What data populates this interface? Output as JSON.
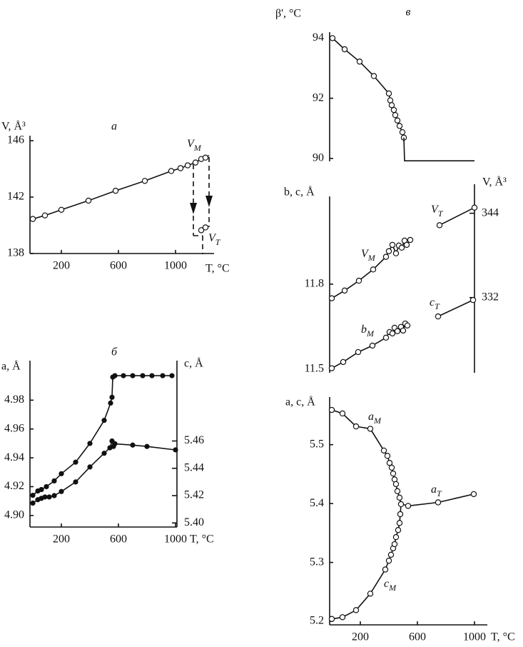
{
  "chart_data": [
    {
      "type": "scatter",
      "title": "а",
      "ylabel": "V, Å³",
      "xlabel": "T, °C",
      "marker": "open",
      "xlim": [
        -20,
        1270
      ],
      "ylim": [
        138,
        146
      ],
      "xticks": [
        200,
        600,
        1000
      ],
      "yticks": [
        138,
        142,
        146
      ],
      "series": [
        {
          "x": [
            0,
            85,
            200,
            390,
            580,
            785,
            970,
            1035,
            1085,
            1140,
            1180,
            1210
          ],
          "values": [
            140.45,
            140.7,
            141.1,
            141.75,
            142.45,
            143.15,
            143.85,
            144.05,
            144.25,
            144.45,
            144.7,
            144.8
          ]
        },
        {
          "x": [
            1180,
            1210
          ],
          "values": [
            139.65,
            139.85
          ]
        }
      ],
      "annotations": [
        {
          "text": "V",
          "sub": "M"
        },
        {
          "text": "V",
          "sub": "T"
        }
      ]
    },
    {
      "type": "scatter",
      "title": "б",
      "ylabel": "a, Å",
      "y2label": "c, Å",
      "xlabel": "T, °C",
      "marker": "filled",
      "xlim": [
        -20,
        1010
      ],
      "ylim": [
        4.892,
        5.0
      ],
      "y2lim": [
        5.397,
        5.511
      ],
      "xticks": [
        200,
        600,
        1000
      ],
      "yticks": [
        {
          "value": 4.9,
          "label": "4.90"
        },
        4.92,
        4.94,
        4.96,
        4.98
      ],
      "y2ticks": [
        {
          "value": 5.4,
          "label": "5.40"
        },
        5.42,
        5.44,
        5.46
      ],
      "series": [
        {
          "x": [
            0,
            35,
            60,
            95,
            150,
            200,
            300,
            400,
            500,
            545,
            555,
            560,
            575,
            635,
            700,
            770,
            835,
            910,
            975
          ],
          "values": [
            4.914,
            4.917,
            4.918,
            4.92,
            4.924,
            4.929,
            4.937,
            4.95,
            4.966,
            4.978,
            4.982,
            4.996,
            4.997,
            4.997,
            4.997,
            4.997,
            4.997,
            4.997,
            4.997
          ]
        },
        {
          "axis": "y2",
          "x": [
            0,
            35,
            60,
            85,
            115,
            150,
            200,
            300,
            400,
            500,
            540,
            555,
            565,
            575,
            700,
            800,
            1000
          ],
          "values": [
            5.4145,
            5.417,
            5.418,
            5.419,
            5.419,
            5.42,
            5.423,
            5.43,
            5.441,
            5.451,
            5.455,
            5.46,
            5.456,
            5.458,
            5.457,
            5.456,
            5.4535
          ]
        }
      ]
    },
    {
      "type": "scatter",
      "title": "в",
      "ylabel": "β', °C",
      "marker": "open",
      "xlim": [
        -15,
        1000
      ],
      "ylim": [
        89.9,
        94.2
      ],
      "yticks": [
        90,
        92,
        94
      ],
      "series": [
        {
          "x": [
            5,
            90,
            195,
            295,
            400,
            410,
            420,
            435,
            445,
            460,
            475,
            495,
            505
          ],
          "values": [
            94.0,
            93.63,
            93.22,
            92.74,
            92.16,
            91.93,
            91.77,
            91.61,
            91.44,
            91.26,
            91.08,
            90.87,
            90.69
          ]
        },
        {
          "marker": "none",
          "x": [
            505,
            510,
            1000
          ],
          "values": [
            90.69,
            89.92,
            89.92
          ]
        }
      ]
    },
    {
      "type": "scatter",
      "ylabel": "b, c, Å",
      "y2label": "V, Å³",
      "marker": "open",
      "xlim": [
        -15,
        1000
      ],
      "ylim": [
        11.487,
        12.11
      ],
      "y2lim": [
        321.3,
        346.4
      ],
      "yticks": [
        11.5,
        11.8
      ],
      "y2ticks": [
        332,
        344
      ],
      "series": [
        {
          "axis": "y2",
          "x": [
            0,
            90,
            190,
            290,
            380,
            400,
            425,
            450,
            470,
            490,
            510,
            525,
            550
          ],
          "values": [
            331.9,
            333.0,
            334.4,
            336.0,
            337.8,
            338.6,
            339.5,
            338.3,
            339.4,
            339.1,
            340.1,
            339.5,
            340.2
          ]
        },
        {
          "axis": "y2",
          "x": [
            755,
            1000
          ],
          "values": [
            342.3,
            344.8
          ]
        },
        {
          "x": [
            0,
            80,
            185,
            285,
            380,
            405,
            425,
            440,
            460,
            485,
            500,
            515,
            530
          ],
          "values": [
            11.503,
            11.525,
            11.56,
            11.583,
            11.611,
            11.631,
            11.626,
            11.646,
            11.634,
            11.649,
            11.636,
            11.661,
            11.654
          ]
        },
        {
          "x": [
            745,
            990
          ],
          "values": [
            11.686,
            11.744
          ]
        }
      ],
      "annotations": [
        {
          "text": "V",
          "sub": "M"
        },
        {
          "text": "V",
          "sub": "T"
        },
        {
          "text": "b",
          "sub": "M"
        },
        {
          "text": "c",
          "sub": "T"
        }
      ]
    },
    {
      "type": "scatter",
      "ylabel": "a, c, Å",
      "xlabel": "T, °C",
      "marker": "open",
      "xlim": [
        -15,
        1090
      ],
      "ylim": [
        5.194,
        5.576
      ],
      "xticks": [
        200,
        600,
        1000
      ],
      "yticks": [
        5.2,
        5.3,
        5.4,
        5.5
      ],
      "series": [
        {
          "x": [
            0,
            75,
            170,
            270,
            365,
            390,
            405,
            420,
            430,
            440,
            450,
            460,
            475,
            485
          ],
          "values": [
            5.559,
            5.553,
            5.531,
            5.527,
            5.49,
            5.481,
            5.469,
            5.461,
            5.451,
            5.441,
            5.433,
            5.421,
            5.41,
            5.399
          ]
        },
        {
          "x": [
            535,
            745,
            995
          ],
          "values": [
            5.396,
            5.402,
            5.416
          ]
        },
        {
          "x": [
            0,
            75,
            170,
            270,
            375,
            400,
            415,
            430,
            440,
            450,
            465,
            475,
            480
          ],
          "values": [
            5.204,
            5.207,
            5.219,
            5.247,
            5.288,
            5.303,
            5.313,
            5.324,
            5.331,
            5.343,
            5.355,
            5.367,
            5.382
          ]
        }
      ],
      "annotations": [
        {
          "text": "a",
          "sub": "M"
        },
        {
          "text": "a",
          "sub": "T"
        },
        {
          "text": "c",
          "sub": "M"
        }
      ]
    }
  ]
}
